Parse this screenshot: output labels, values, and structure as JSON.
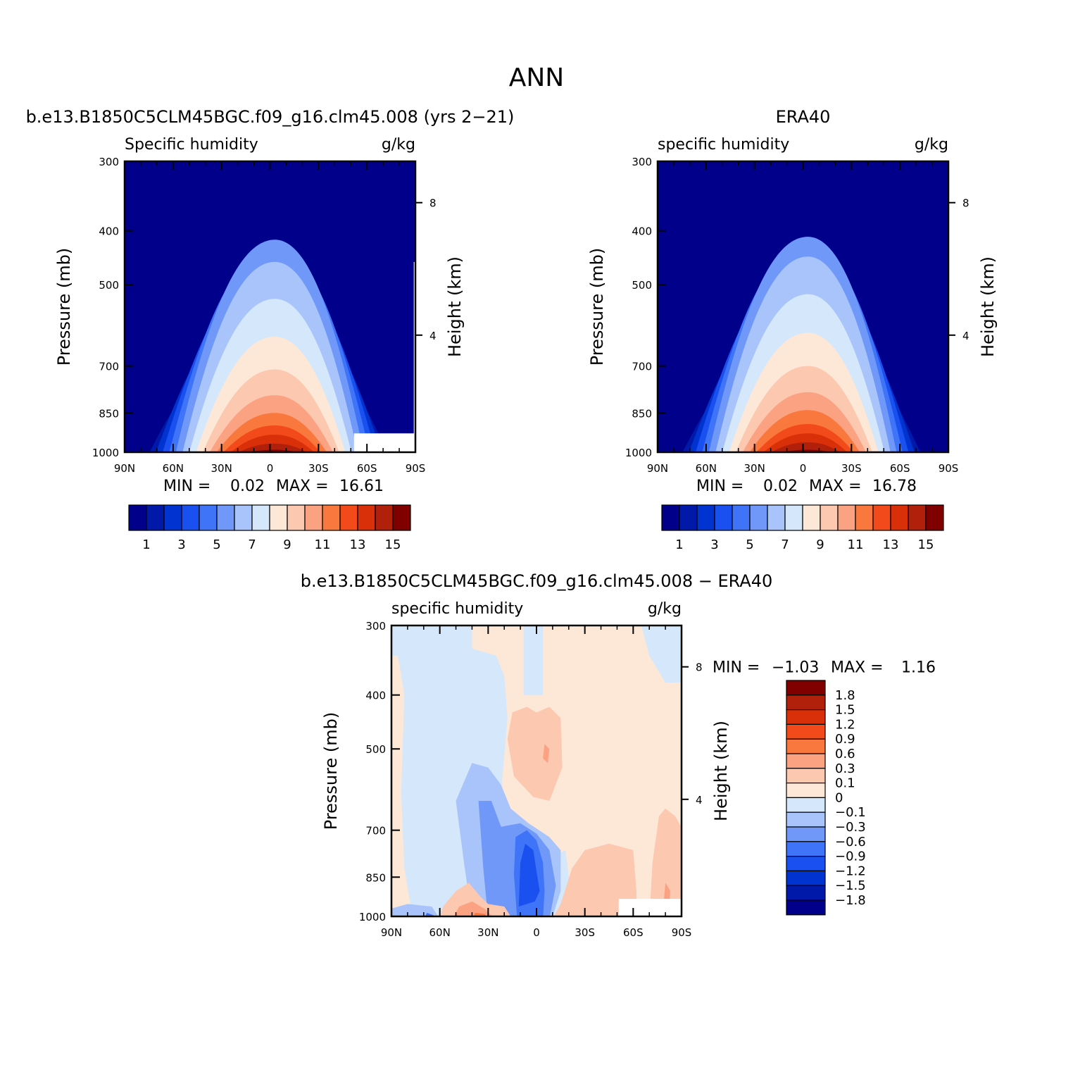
{
  "figure": {
    "title": "ANN"
  },
  "chart_data": [
    {
      "type": "heatmap",
      "title": "b.e13.B1850C5CLM45BGC.f09_g16.clm45.008 (yrs 2−21)",
      "subtitle_left": "Specific humidity",
      "subtitle_right": "g/kg",
      "xlabel": "",
      "ylabel": "Pressure (mb)",
      "ylabel_right": "Height (km)",
      "x_ticks": [
        "90N",
        "60N",
        "30N",
        "0",
        "30S",
        "60S",
        "90S"
      ],
      "y_ticks": [
        "300",
        "400",
        "500",
        "700",
        "850",
        "1000"
      ],
      "y_right_ticks": [
        "8",
        "4"
      ],
      "min_label": "MIN =",
      "min_value": "0.02",
      "max_label": "MAX =",
      "max_value": "16.61",
      "colorbar_labels": [
        "1",
        "3",
        "5",
        "7",
        "9",
        "11",
        "13",
        "15"
      ],
      "colorbar_colors": [
        "#00008b",
        "#0019a8",
        "#0033d0",
        "#1a50f0",
        "#3f74f8",
        "#6f98f8",
        "#a8c4fa",
        "#d5e7fb",
        "#fde8d8",
        "#fcc8b0",
        "#fba283",
        "#f8783e",
        "#f24a1a",
        "#d93009",
        "#b0200a",
        "#800000"
      ],
      "peak_lat": -3,
      "tops_pressure": [
        700,
        600,
        510,
        460,
        430,
        415,
        455,
        530,
        620,
        710,
        790,
        850,
        895,
        930,
        965,
        990
      ]
    },
    {
      "type": "heatmap",
      "title": "ERA40",
      "subtitle_left": "specific humidity",
      "subtitle_right": "g/kg",
      "xlabel": "",
      "ylabel": "Pressure (mb)",
      "ylabel_right": "Height (km)",
      "x_ticks": [
        "90N",
        "60N",
        "30N",
        "0",
        "30S",
        "60S",
        "90S"
      ],
      "y_ticks": [
        "300",
        "400",
        "500",
        "700",
        "850",
        "1000"
      ],
      "y_right_ticks": [
        "8",
        "4"
      ],
      "min_label": "MIN =",
      "min_value": "0.02",
      "max_label": "MAX =",
      "max_value": "16.78",
      "colorbar_labels": [
        "1",
        "3",
        "5",
        "7",
        "9",
        "11",
        "13",
        "15"
      ],
      "colorbar_colors": [
        "#00008b",
        "#0019a8",
        "#0033d0",
        "#1a50f0",
        "#3f74f8",
        "#6f98f8",
        "#a8c4fa",
        "#d5e7fb",
        "#fde8d8",
        "#fcc8b0",
        "#fba283",
        "#f8783e",
        "#f24a1a",
        "#d93009",
        "#b0200a",
        "#800000"
      ],
      "peak_lat": -3,
      "tops_pressure": [
        720,
        600,
        510,
        455,
        425,
        410,
        445,
        520,
        610,
        700,
        780,
        840,
        890,
        925,
        960,
        990
      ]
    },
    {
      "type": "heatmap",
      "title": "b.e13.B1850C5CLM45BGC.f09_g16.clm45.008 − ERA40",
      "subtitle_left": "specific humidity",
      "subtitle_right": "g/kg",
      "xlabel": "",
      "ylabel": "Pressure (mb)",
      "ylabel_right": "Height (km)",
      "x_ticks": [
        "90N",
        "60N",
        "30N",
        "0",
        "30S",
        "60S",
        "90S"
      ],
      "y_ticks": [
        "300",
        "400",
        "500",
        "700",
        "850",
        "1000"
      ],
      "y_right_ticks": [
        "8",
        "4"
      ],
      "min_label": "MIN =",
      "min_value": "−1.03",
      "max_label": "MAX =",
      "max_value": "1.16",
      "colorbar_labels": [
        "1.8",
        "1.5",
        "1.2",
        "0.9",
        "0.6",
        "0.3",
        "0.1",
        "0",
        "−0.1",
        "−0.3",
        "−0.6",
        "−0.9",
        "−1.2",
        "−1.5",
        "−1.8"
      ],
      "colorbar_colors": [
        "#800000",
        "#b0200a",
        "#d93009",
        "#f24a1a",
        "#f8783e",
        "#fba283",
        "#fcc8b0",
        "#fde8d8",
        "#d5e7fb",
        "#a8c4fa",
        "#6f98f8",
        "#3f74f8",
        "#1a50f0",
        "#0033d0",
        "#0019a8",
        "#00008b"
      ]
    }
  ]
}
